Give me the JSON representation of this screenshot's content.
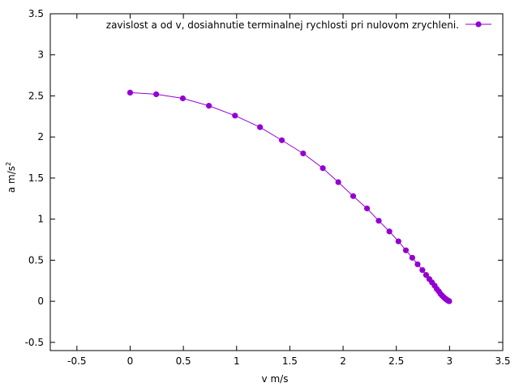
{
  "chart_data": {
    "type": "line",
    "title": "",
    "xlabel": "v m/s",
    "ylabel_main": "a m/s",
    "ylabel_sup": "2",
    "xlim": [
      -0.75,
      3.5
    ],
    "ylim": [
      -0.6,
      3.5
    ],
    "xticks": [
      -0.5,
      0,
      0.5,
      1,
      1.5,
      2,
      2.5,
      3,
      3.5
    ],
    "xtick_labels": [
      "-0.5",
      "0",
      "0.5",
      "1",
      "1.5",
      "2",
      "2.5",
      "3",
      "3.5"
    ],
    "yticks": [
      -0.5,
      0,
      0.5,
      1,
      1.5,
      2,
      2.5,
      3,
      3.5
    ],
    "ytick_labels": [
      "-0.5",
      "0",
      "0.5",
      "1",
      "1.5",
      "2",
      "2.5",
      "3",
      "3.5"
    ],
    "grid": false,
    "legend_position": "top-right",
    "series": [
      {
        "name": "zavislost a od v, dosiahnutie terminalnej rychlosti pri nulovom zrychleni.",
        "color": "#9400d3",
        "marker": "circle",
        "x": [
          0,
          0.245,
          0.495,
          0.74,
          0.985,
          1.22,
          1.425,
          1.625,
          1.81,
          1.955,
          2.095,
          2.225,
          2.335,
          2.435,
          2.52,
          2.59,
          2.65,
          2.7,
          2.745,
          2.78,
          2.81,
          2.835,
          2.86,
          2.88,
          2.9,
          2.915,
          2.93,
          2.945,
          2.958,
          2.968,
          2.976,
          2.983,
          2.988,
          2.992,
          2.995,
          2.997
        ],
        "y": [
          2.54,
          2.52,
          2.47,
          2.38,
          2.26,
          2.12,
          1.96,
          1.8,
          1.62,
          1.45,
          1.28,
          1.13,
          0.98,
          0.85,
          0.73,
          0.62,
          0.53,
          0.45,
          0.38,
          0.32,
          0.27,
          0.23,
          0.19,
          0.15,
          0.12,
          0.09,
          0.07,
          0.05,
          0.035,
          0.025,
          0.017,
          0.011,
          0.007,
          0.004,
          0.002,
          0.001
        ]
      }
    ]
  }
}
